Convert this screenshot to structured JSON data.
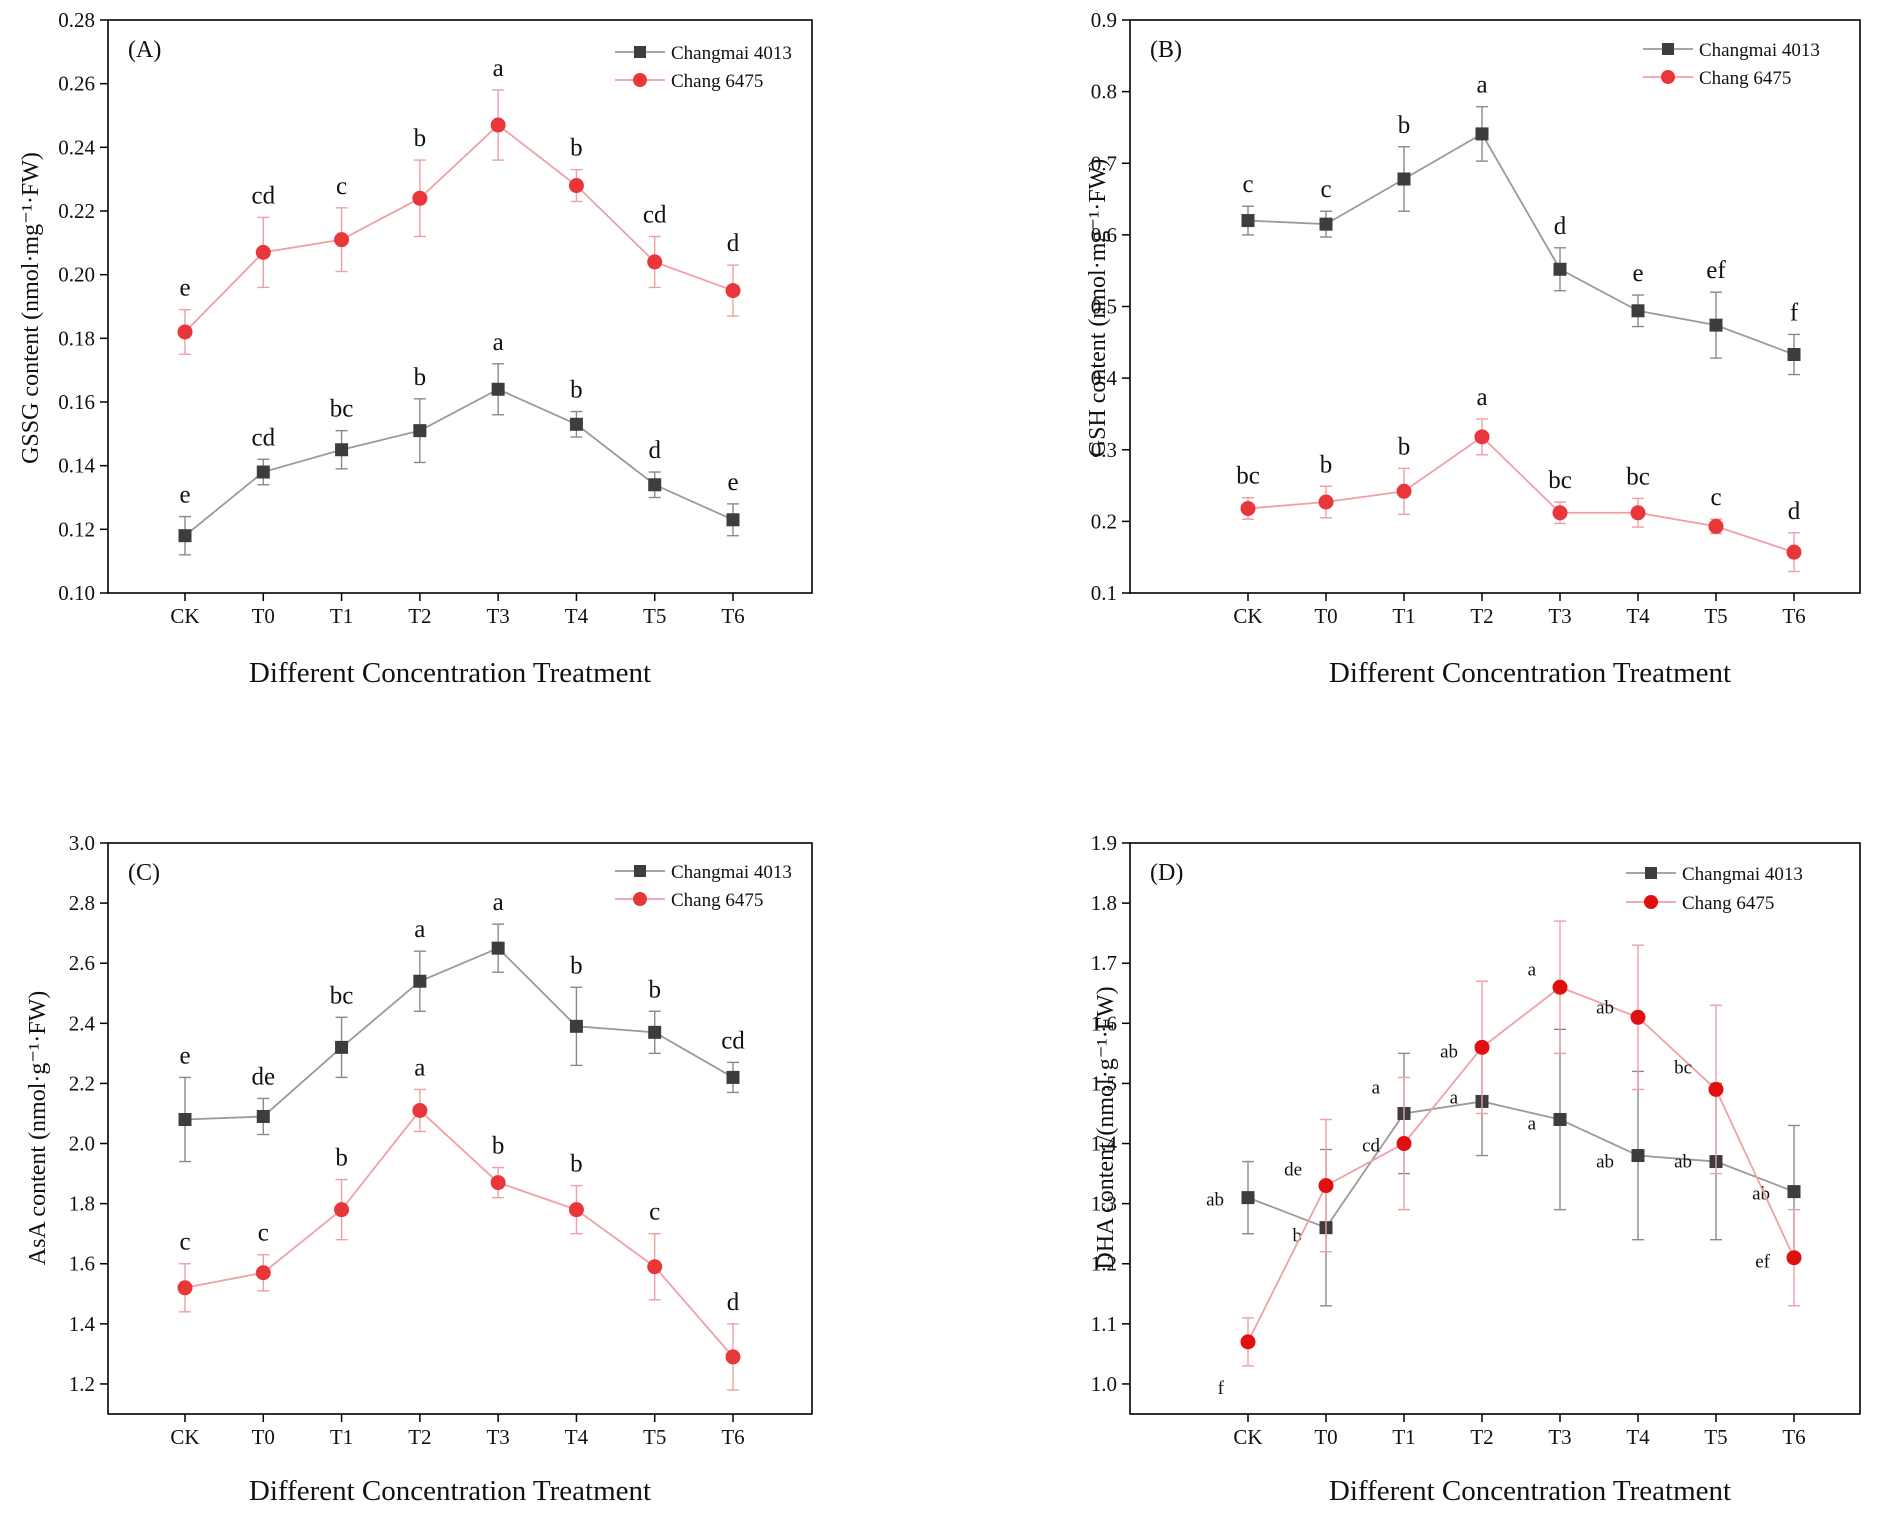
{
  "colors": {
    "changmai": "#3d3d3d",
    "changmai_line": "#9a9a9a",
    "chang": "#e8363b",
    "chang_line": "#f0a0a4",
    "chang_dark": "#e01010"
  },
  "chart_data": [
    {
      "type": "line",
      "panel": "(A)",
      "xlabel": "Different Concentration Treatment",
      "ylabel": "GSSG content (nmol·mg⁻¹·FW)",
      "categories": [
        "CK",
        "T0",
        "T1",
        "T2",
        "T3",
        "T4",
        "T5",
        "T6"
      ],
      "ylim": [
        0.1,
        0.28
      ],
      "yticks": [
        "0.10",
        "0.12",
        "0.14",
        "0.16",
        "0.18",
        "0.20",
        "0.22",
        "0.24",
        "0.26",
        "0.28"
      ],
      "legend_position": "top-right",
      "series": [
        {
          "name": "Changmai 4013",
          "marker": "square",
          "values": [
            0.118,
            0.138,
            0.145,
            0.151,
            0.164,
            0.153,
            0.134,
            0.123
          ],
          "errors": [
            0.006,
            0.004,
            0.006,
            0.01,
            0.008,
            0.004,
            0.004,
            0.005
          ],
          "letters": [
            "e",
            "cd",
            "bc",
            "b",
            "a",
            "b",
            "d",
            "e"
          ]
        },
        {
          "name": "Chang 6475",
          "marker": "circle",
          "values": [
            0.182,
            0.207,
            0.211,
            0.224,
            0.247,
            0.228,
            0.204,
            0.195
          ],
          "errors": [
            0.007,
            0.011,
            0.01,
            0.012,
            0.011,
            0.005,
            0.008,
            0.008
          ],
          "letters": [
            "e",
            "cd",
            "c",
            "b",
            "a",
            "b",
            "cd",
            "d"
          ]
        }
      ]
    },
    {
      "type": "line",
      "panel": "(B)",
      "xlabel": "Different Concentration Treatment",
      "ylabel": "GSH content (nmol·mg⁻¹·FW)",
      "categories": [
        "CK",
        "T0",
        "T1",
        "T2",
        "T3",
        "T4",
        "T5",
        "T6"
      ],
      "ylim": [
        0.1,
        0.9
      ],
      "yticks": [
        "0.1",
        "0.2",
        "0.3",
        "0.4",
        "0.5",
        "0.6",
        "0.7",
        "0.8",
        "0.9"
      ],
      "legend_position": "top-right",
      "series": [
        {
          "name": "Changmai 4013",
          "marker": "square",
          "values": [
            0.62,
            0.615,
            0.678,
            0.741,
            0.552,
            0.494,
            0.474,
            0.433
          ],
          "errors": [
            0.02,
            0.018,
            0.045,
            0.038,
            0.03,
            0.022,
            0.046,
            0.028
          ],
          "letters": [
            "c",
            "c",
            "b",
            "a",
            "d",
            "e",
            "ef",
            "f"
          ]
        },
        {
          "name": "Chang 6475",
          "marker": "circle",
          "values": [
            0.218,
            0.227,
            0.242,
            0.318,
            0.212,
            0.212,
            0.193,
            0.157
          ],
          "errors": [
            0.015,
            0.022,
            0.032,
            0.025,
            0.015,
            0.02,
            0.01,
            0.027
          ],
          "letters": [
            "bc",
            "b",
            "b",
            "a",
            "bc",
            "bc",
            "c",
            "d"
          ]
        }
      ]
    },
    {
      "type": "line",
      "panel": "(C)",
      "xlabel": "Different Concentration Treatment",
      "ylabel": "AsA content (nmol·g⁻¹·FW)",
      "categories": [
        "CK",
        "T0",
        "T1",
        "T2",
        "T3",
        "T4",
        "T5",
        "T6"
      ],
      "ylim": [
        1.1,
        3.0
      ],
      "yticks": [
        "1.2",
        "1.4",
        "1.6",
        "1.8",
        "2.0",
        "2.2",
        "2.4",
        "2.6",
        "2.8",
        "3.0"
      ],
      "legend_position": "top-right",
      "series": [
        {
          "name": "Changmai 4013",
          "marker": "square",
          "values": [
            2.08,
            2.09,
            2.32,
            2.54,
            2.65,
            2.39,
            2.37,
            2.22
          ],
          "errors": [
            0.14,
            0.06,
            0.1,
            0.1,
            0.08,
            0.13,
            0.07,
            0.05
          ],
          "letters": [
            "e",
            "de",
            "bc",
            "a",
            "a",
            "b",
            "b",
            "cd"
          ]
        },
        {
          "name": "Chang 6475",
          "marker": "circle",
          "values": [
            1.52,
            1.57,
            1.78,
            2.11,
            1.87,
            1.78,
            1.59,
            1.29
          ],
          "errors": [
            0.08,
            0.06,
            0.1,
            0.07,
            0.05,
            0.08,
            0.11,
            0.11
          ],
          "letters": [
            "c",
            "c",
            "b",
            "a",
            "b",
            "b",
            "c",
            "d"
          ]
        }
      ]
    },
    {
      "type": "line",
      "panel": "(D)",
      "xlabel": "Different Concentration Treatment",
      "ylabel": "DHA content/(nmol·g⁻¹·FW)",
      "categories": [
        "CK",
        "T0",
        "T1",
        "T2",
        "T3",
        "T4",
        "T5",
        "T6"
      ],
      "ylim": [
        0.95,
        1.9
      ],
      "yticks": [
        "1.0",
        "1.1",
        "1.2",
        "1.3",
        "1.4",
        "1.5",
        "1.6",
        "1.7",
        "1.8",
        "1.9"
      ],
      "legend_position": "top-right",
      "series": [
        {
          "name": "Changmai 4013",
          "marker": "square",
          "values": [
            1.31,
            1.26,
            1.45,
            1.47,
            1.44,
            1.38,
            1.37,
            1.32
          ],
          "errors": [
            0.06,
            0.13,
            0.1,
            0.09,
            0.15,
            0.14,
            0.13,
            0.11
          ],
          "letters": [
            "ab",
            "b",
            "a",
            "a",
            "a",
            "ab",
            "ab",
            "ab"
          ]
        },
        {
          "name": "Chang 6475",
          "marker": "circle",
          "values": [
            1.07,
            1.33,
            1.4,
            1.56,
            1.66,
            1.61,
            1.49,
            1.21
          ],
          "errors": [
            0.04,
            0.11,
            0.11,
            0.11,
            0.11,
            0.12,
            0.14,
            0.08
          ],
          "letters": [
            "f",
            "de",
            "cd",
            "ab",
            "a",
            "ab",
            "bc",
            "ef"
          ]
        }
      ]
    }
  ]
}
